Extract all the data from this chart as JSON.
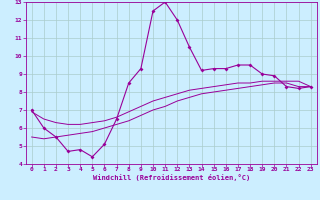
{
  "xlabel": "Windchill (Refroidissement éolien,°C)",
  "bg_color": "#cceeff",
  "line_color": "#990099",
  "grid_color": "#aacccc",
  "xlim": [
    -0.5,
    23.5
  ],
  "ylim": [
    4,
    13
  ],
  "xticks": [
    0,
    1,
    2,
    3,
    4,
    5,
    6,
    7,
    8,
    9,
    10,
    11,
    12,
    13,
    14,
    15,
    16,
    17,
    18,
    19,
    20,
    21,
    22,
    23
  ],
  "yticks": [
    4,
    5,
    6,
    7,
    8,
    9,
    10,
    11,
    12,
    13
  ],
  "series1_x": [
    0,
    1,
    2,
    3,
    4,
    5,
    6,
    7,
    8,
    9,
    10,
    11,
    12,
    13,
    14,
    15,
    16,
    17,
    18,
    19,
    20,
    21,
    22,
    23
  ],
  "series1_y": [
    7.0,
    6.0,
    5.5,
    4.7,
    4.8,
    4.4,
    5.1,
    6.5,
    8.5,
    9.3,
    12.5,
    13.0,
    12.0,
    10.5,
    9.2,
    9.3,
    9.3,
    9.5,
    9.5,
    9.0,
    8.9,
    8.3,
    8.2,
    8.3
  ],
  "series2_x": [
    0,
    1,
    2,
    3,
    4,
    5,
    6,
    7,
    8,
    9,
    10,
    11,
    12,
    13,
    14,
    15,
    16,
    17,
    18,
    19,
    20,
    21,
    22,
    23
  ],
  "series2_y": [
    6.9,
    6.5,
    6.3,
    6.2,
    6.2,
    6.3,
    6.4,
    6.6,
    6.9,
    7.2,
    7.5,
    7.7,
    7.9,
    8.1,
    8.2,
    8.3,
    8.4,
    8.5,
    8.5,
    8.6,
    8.6,
    8.6,
    8.6,
    8.3
  ],
  "series3_x": [
    0,
    1,
    2,
    3,
    4,
    5,
    6,
    7,
    8,
    9,
    10,
    11,
    12,
    13,
    14,
    15,
    16,
    17,
    18,
    19,
    20,
    21,
    22,
    23
  ],
  "series3_y": [
    5.5,
    5.4,
    5.5,
    5.6,
    5.7,
    5.8,
    6.0,
    6.2,
    6.4,
    6.7,
    7.0,
    7.2,
    7.5,
    7.7,
    7.9,
    8.0,
    8.1,
    8.2,
    8.3,
    8.4,
    8.5,
    8.5,
    8.3,
    8.3
  ]
}
